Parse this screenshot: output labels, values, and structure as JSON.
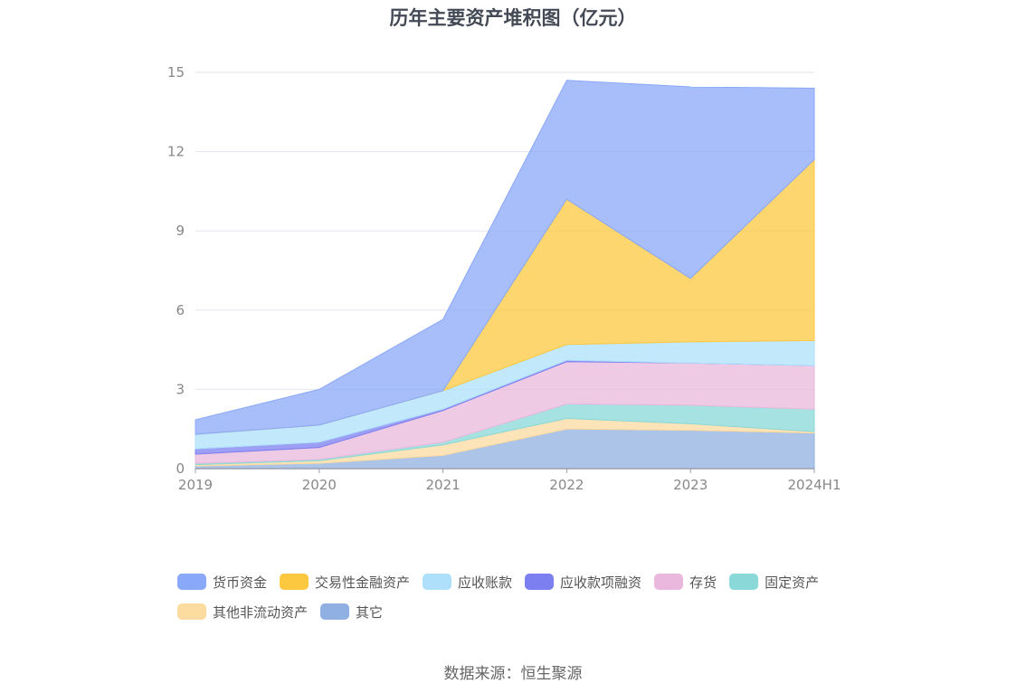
{
  "chart_data": {
    "type": "area",
    "title": "历年主要资产堆积图（亿元）",
    "categories": [
      "2019",
      "2020",
      "2021",
      "2022",
      "2023",
      "2024H1"
    ],
    "ylim": [
      0,
      15
    ],
    "yticks": [
      0,
      3,
      6,
      9,
      12,
      15
    ],
    "grid": true,
    "stacked": true,
    "legend_position": "bottom",
    "series": [
      {
        "name": "其它",
        "color": "#8fb0e0",
        "values": [
          0.1,
          0.2,
          0.5,
          1.5,
          1.45,
          1.35
        ]
      },
      {
        "name": "其他非流动资产",
        "color": "#fcdba0",
        "values": [
          0.05,
          0.1,
          0.4,
          0.4,
          0.25,
          0.05
        ]
      },
      {
        "name": "固定资产",
        "color": "#8ad8d8",
        "values": [
          0.05,
          0.05,
          0.1,
          0.55,
          0.7,
          0.85
        ]
      },
      {
        "name": "存货",
        "color": "#eab8dc",
        "values": [
          0.35,
          0.45,
          1.2,
          1.6,
          1.6,
          1.65
        ]
      },
      {
        "name": "应收款项融资",
        "color": "#7b7ff0",
        "values": [
          0.2,
          0.2,
          0.05,
          0.05,
          0.0,
          0.0
        ]
      },
      {
        "name": "应收账款",
        "color": "#aee0fb",
        "values": [
          0.55,
          0.65,
          0.7,
          0.6,
          0.8,
          0.95
        ]
      },
      {
        "name": "交易性金融资产",
        "color": "#fcc83f",
        "values": [
          0.0,
          0.0,
          0.0,
          5.5,
          2.4,
          6.85
        ]
      },
      {
        "name": "货币资金",
        "color": "#89a8f8",
        "values": [
          0.55,
          1.35,
          2.7,
          4.5,
          7.25,
          2.7
        ]
      }
    ]
  },
  "legend_order": [
    "货币资金",
    "交易性金融资产",
    "应收账款",
    "应收款项融资",
    "存货",
    "固定资产",
    "其他非流动资产",
    "其它"
  ],
  "source": "数据来源：恒生聚源"
}
